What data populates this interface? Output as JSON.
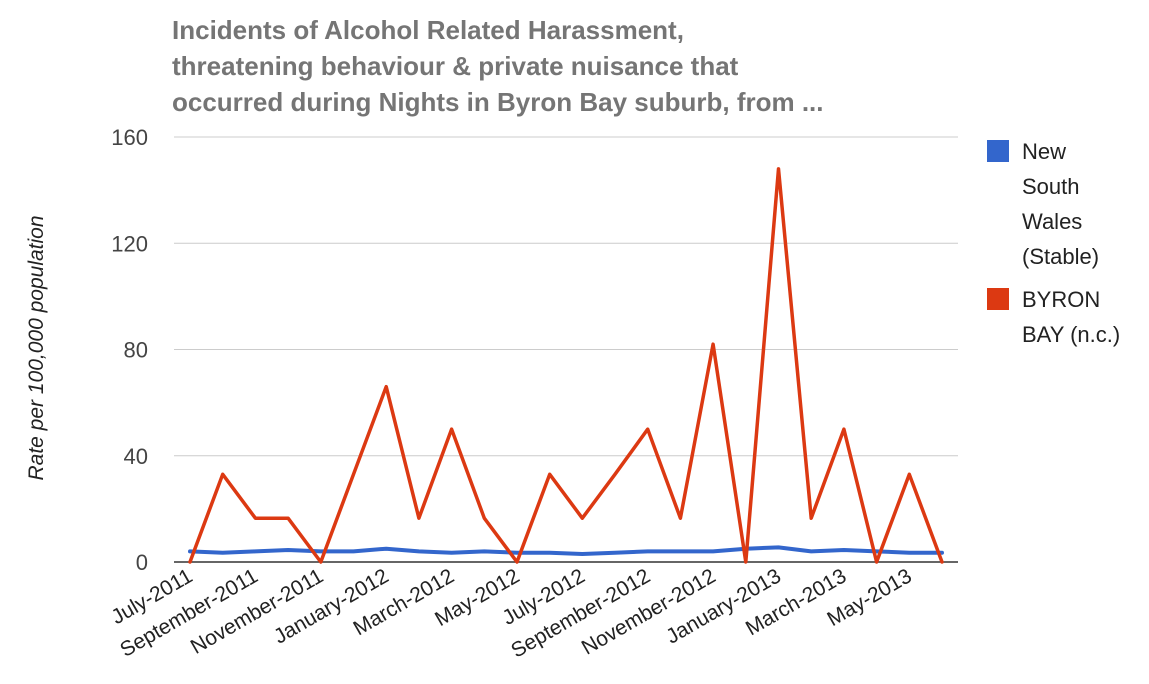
{
  "chart_data": {
    "type": "line",
    "title_lines": [
      "Incidents of Alcohol Related Harassment,",
      "threatening behaviour & private nuisance that",
      "occurred during Nights in Byron Bay suburb, from ..."
    ],
    "xlabel": "",
    "ylabel": "Rate per 100,000 population",
    "ylim": [
      0,
      160
    ],
    "yticks": [
      "0",
      "40",
      "80",
      "120",
      "160"
    ],
    "grid": true,
    "legend_position": "right",
    "x": [
      "July-2011",
      "August-2011",
      "September-2011",
      "October-2011",
      "November-2011",
      "December-2011",
      "January-2012",
      "February-2012",
      "March-2012",
      "April-2012",
      "May-2012",
      "June-2012",
      "July-2012",
      "August-2012",
      "September-2012",
      "October-2012",
      "November-2012",
      "December-2012",
      "January-2013",
      "February-2013",
      "March-2013",
      "April-2013",
      "May-2013",
      "June-2013"
    ],
    "xtick_labels": [
      "July-2011",
      "September-2011",
      "November-2011",
      "January-2012",
      "March-2012",
      "May-2012",
      "July-2012",
      "September-2012",
      "November-2012",
      "January-2013",
      "March-2013",
      "May-2013"
    ],
    "series": [
      {
        "name": "New South Wales (Stable)",
        "legend_lines": [
          "New",
          "South",
          "Wales",
          "(Stable)"
        ],
        "color": "#3366cc",
        "values": [
          4,
          3.5,
          4,
          4.5,
          4,
          4,
          5,
          4,
          3.5,
          4,
          3.5,
          3.5,
          3,
          3.5,
          4,
          4,
          4,
          5,
          5.5,
          4,
          4.5,
          4,
          3.5,
          3.5
        ]
      },
      {
        "name": "BYRON BAY (n.c.)",
        "legend_lines": [
          "BYRON",
          "BAY (n.c.)"
        ],
        "color": "#dc3912",
        "values": [
          0,
          33,
          16.5,
          16.5,
          0,
          33,
          66,
          16.5,
          50,
          16.5,
          0,
          33,
          16.5,
          33,
          50,
          16.5,
          82,
          0,
          148,
          16.5,
          50,
          0,
          33,
          0
        ]
      }
    ]
  }
}
